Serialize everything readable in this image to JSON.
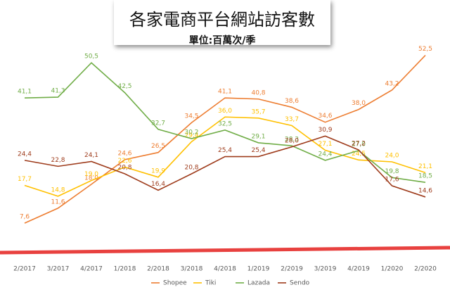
{
  "chart_data": {
    "type": "line",
    "title": "各家電商平台網站訪客數",
    "subtitle": "單位:百萬次/季",
    "categories": [
      "2/2017",
      "3/2017",
      "4/2017",
      "1/2018",
      "2/2018",
      "3/2018",
      "4/2018",
      "1/2019",
      "2/2019",
      "3/2019",
      "4/2019",
      "1/2020",
      "2/2020"
    ],
    "ylim": [
      0,
      56
    ],
    "legend": "bottom",
    "series": [
      {
        "name": "Shopee",
        "color": "#ED7D31",
        "values": [
          7.6,
          11.6,
          18.0,
          24.6,
          26.5,
          34.5,
          41.1,
          40.8,
          38.6,
          34.6,
          38.0,
          43.2,
          52.5
        ],
        "value_labels": [
          "7,6",
          "11,6",
          "18,0",
          "24,6",
          "26,5",
          "34,5",
          "41,1",
          "40,8",
          "38,6",
          "34,6",
          "38,0",
          "43,2",
          "52,5"
        ]
      },
      {
        "name": "Tiki",
        "color": "#FFC000",
        "values": [
          17.7,
          14.8,
          19.0,
          22.6,
          19.9,
          29.4,
          36.0,
          35.7,
          33.7,
          27.1,
          24.5,
          24.0,
          21.1
        ],
        "value_labels": [
          "17,7",
          "14,8",
          "19,0",
          "22,6",
          "19,9",
          "29,4",
          "36,0",
          "35,7",
          "33,7",
          "27,1",
          "24,5",
          "24,0",
          "21,1"
        ]
      },
      {
        "name": "Lazada",
        "color": "#70AD47",
        "values": [
          41.1,
          41.3,
          50.5,
          42.5,
          32.7,
          30.2,
          32.5,
          29.1,
          28.3,
          24.4,
          27.0,
          19.8,
          18.5
        ],
        "value_labels": [
          "41,1",
          "41,3",
          "50,5",
          "42,5",
          "32,7",
          "30,2",
          "32,5",
          "29,1",
          "28,3",
          "24,4",
          "27,0",
          "19,8",
          "18,5"
        ]
      },
      {
        "name": "Sendo",
        "color": "#9E3B1B",
        "values": [
          24.4,
          22.8,
          24.1,
          20.8,
          16.4,
          20.8,
          25.4,
          25.4,
          28.0,
          30.9,
          27.2,
          17.6,
          14.6
        ],
        "value_labels": [
          "24,4",
          "22,8",
          "24,1",
          "20,8",
          "16,4",
          "20,8",
          "25,4",
          "25,4",
          "28,0",
          "30,9",
          "27,2",
          "17,6",
          "14,6"
        ]
      }
    ]
  }
}
